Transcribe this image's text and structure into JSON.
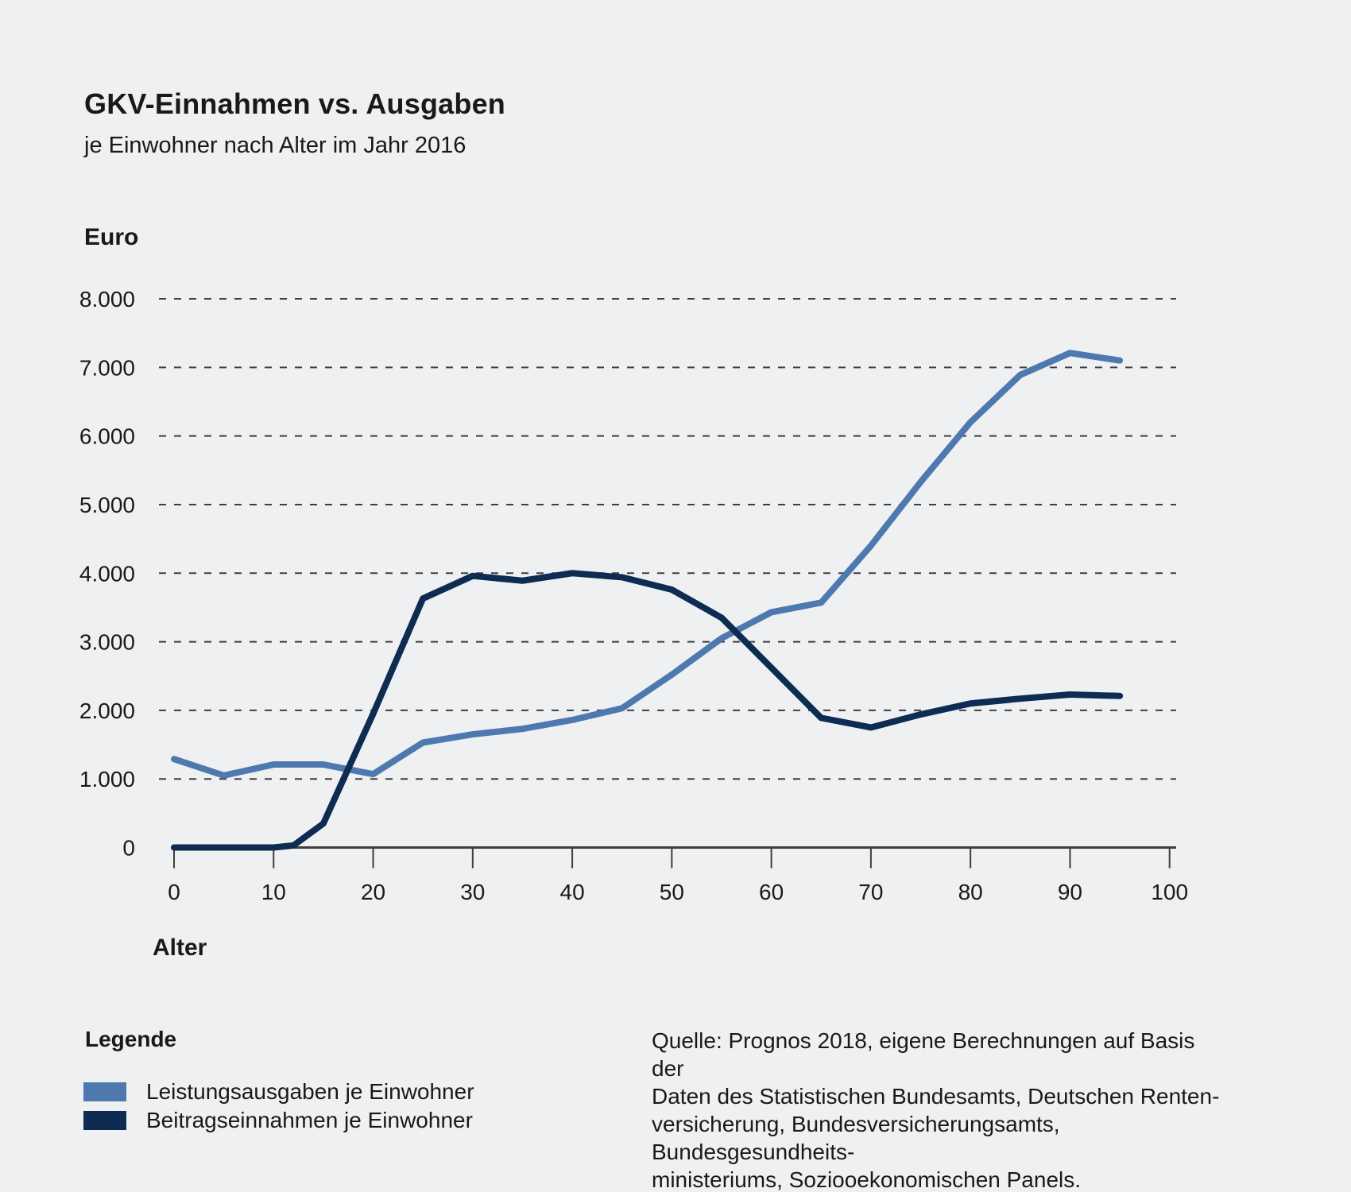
{
  "header": {
    "title": "GKV-Einnahmen vs. Ausgaben",
    "subtitle": "je Einwohner nach Alter im Jahr 2016"
  },
  "legend": {
    "title": "Legende"
  },
  "source": {
    "lines": [
      "Quelle: Prognos 2018, eigene Berechnungen auf Basis der",
      "Daten des Statistischen Bundesamts, Deutschen Renten-",
      "versicherung, Bundesversicherungsamts, Bundesgesundheits-",
      "ministeriums, Soziooekonomischen Panels."
    ]
  },
  "colors": {
    "background": "#eef0f2",
    "text": "#191919",
    "grid": "#3e3e3e",
    "expenses_line": "#4d79ae",
    "income_line": "#0e2b52"
  },
  "chart_data": {
    "type": "line",
    "title": "GKV-Einnahmen vs. Ausgaben",
    "subtitle": "je Einwohner nach Alter im Jahr 2016",
    "y_unit_label": "Euro",
    "x_axis_label": "Alter",
    "xlabel": "Alter",
    "ylabel": "Euro",
    "grid": "horizontal-dashed",
    "legend_position": "bottom-left",
    "xlim": [
      0,
      100
    ],
    "ylim": [
      0,
      8000
    ],
    "xticks": [
      0,
      10,
      20,
      30,
      40,
      50,
      60,
      70,
      80,
      90,
      100
    ],
    "ytick_values": [
      0,
      1000,
      2000,
      3000,
      4000,
      5000,
      6000,
      7000,
      8000
    ],
    "ytick_labels": [
      "0",
      "1.000",
      "2.000",
      "3.000",
      "4.000",
      "5.000",
      "6.000",
      "7.000",
      "8.000"
    ],
    "x": [
      0,
      5,
      10,
      12,
      15,
      20,
      25,
      30,
      35,
      40,
      45,
      50,
      55,
      60,
      65,
      70,
      75,
      80,
      85,
      90,
      95
    ],
    "series": [
      {
        "name": "Leistungsausgaben je Einwohner",
        "color": "#4d79ae",
        "values": [
          1290,
          1050,
          1210,
          1210,
          1210,
          1070,
          1530,
          1650,
          1730,
          1860,
          2030,
          2520,
          3050,
          3430,
          3570,
          4400,
          5330,
          6200,
          6890,
          7210,
          7100
        ]
      },
      {
        "name": "Beitragseinnahmen je Einwohner",
        "color": "#0e2b52",
        "values": [
          0,
          0,
          0,
          30,
          350,
          1950,
          3630,
          3960,
          3890,
          4000,
          3940,
          3760,
          3350,
          2620,
          1890,
          1750,
          1940,
          2100,
          2170,
          2230,
          2210
        ]
      }
    ]
  }
}
